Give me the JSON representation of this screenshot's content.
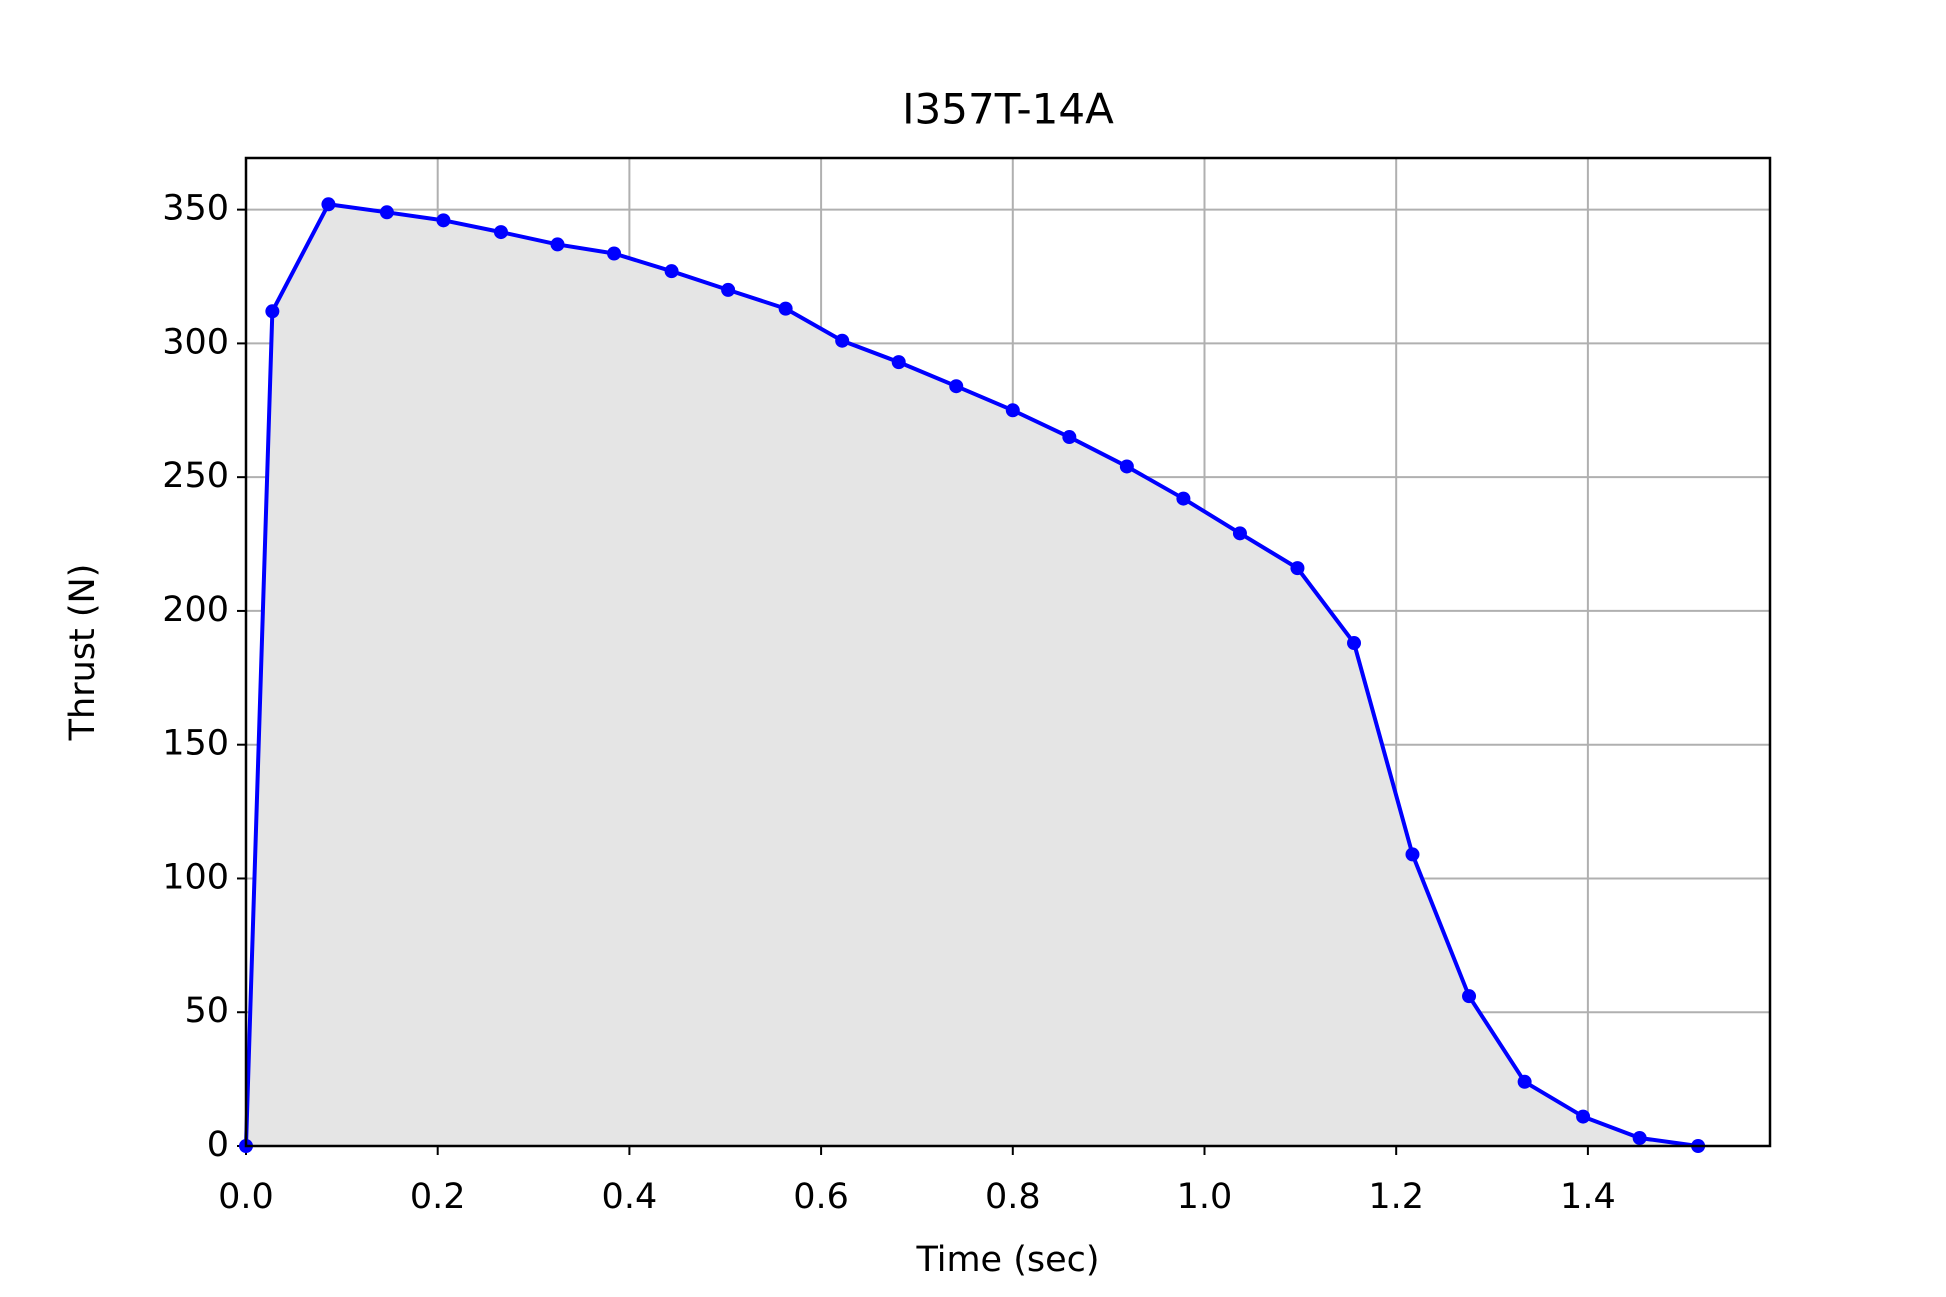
{
  "chart_data": {
    "type": "line",
    "title": "I357T-14A",
    "x_label": "Time (sec)",
    "y_label": "Thrust (N)",
    "x": [
      0,
      0.0275,
      0.086,
      0.147,
      0.206,
      0.266,
      0.325,
      0.384,
      0.444,
      0.503,
      0.563,
      0.622,
      0.681,
      0.741,
      0.8,
      0.859,
      0.919,
      0.978,
      1.037,
      1.097,
      1.156,
      1.217,
      1.276,
      1.334,
      1.395,
      1.454,
      1.515
    ],
    "series": [
      {
        "color": "#0000ff",
        "fill_color": "#e5e5e5",
        "values": [
          0,
          312,
          352,
          349,
          346,
          341.6,
          337,
          333.6,
          327,
          320,
          313,
          301,
          293,
          284,
          275,
          265,
          254,
          242,
          229,
          216,
          188,
          109,
          56,
          24,
          11,
          3,
          0
        ]
      }
    ],
    "xlim": [
      0,
      1.59
    ],
    "ylim": [
      0,
      369.3
    ],
    "xticks": [
      {
        "value": 0,
        "label": "0.0"
      },
      {
        "value": 0.2,
        "label": "0.2"
      },
      {
        "value": 0.4,
        "label": "0.4"
      },
      {
        "value": 0.6,
        "label": "0.6"
      },
      {
        "value": 0.8,
        "label": "0.8"
      },
      {
        "value": 1.0,
        "label": "1.0"
      },
      {
        "value": 1.2,
        "label": "1.2"
      },
      {
        "value": 1.4,
        "label": "1.4"
      }
    ],
    "yticks": [
      0,
      50,
      100,
      150,
      200,
      250,
      300,
      350
    ],
    "grid": true
  }
}
